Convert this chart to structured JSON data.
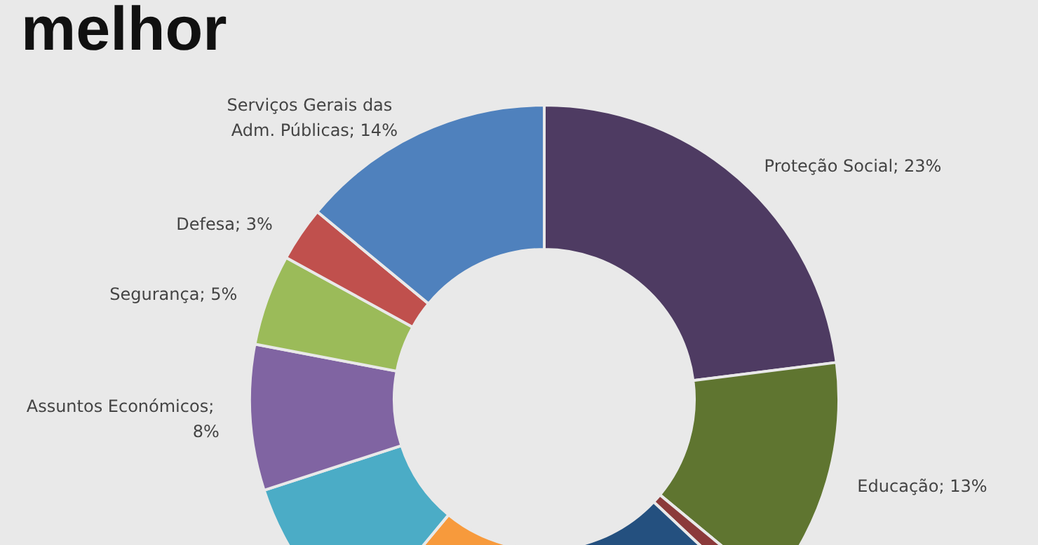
{
  "chart_data": {
    "type": "donut",
    "title": "melhor",
    "categories": [
      "Proteção Social",
      "Educação",
      null,
      null,
      null,
      null,
      "Assuntos Económicos",
      "Segurança",
      "Defesa",
      "Serviços Gerais das Adm. Públicas"
    ],
    "values": [
      23,
      13,
      1,
      14,
      10,
      9,
      8,
      5,
      3,
      14
    ],
    "colors": [
      "#4e3b62",
      "#5f7530",
      "#8b3a3a",
      "#24507f",
      "#f79a3c",
      "#4bacc6",
      "#8064a2",
      "#9bbb59",
      "#c0504d",
      "#4f81bd"
    ],
    "value_labels": [
      "; 23%",
      "; 13%",
      null,
      null,
      null,
      null,
      "; 8%",
      "; 5%",
      "; 3%",
      "; 14%"
    ],
    "legend": false
  }
}
